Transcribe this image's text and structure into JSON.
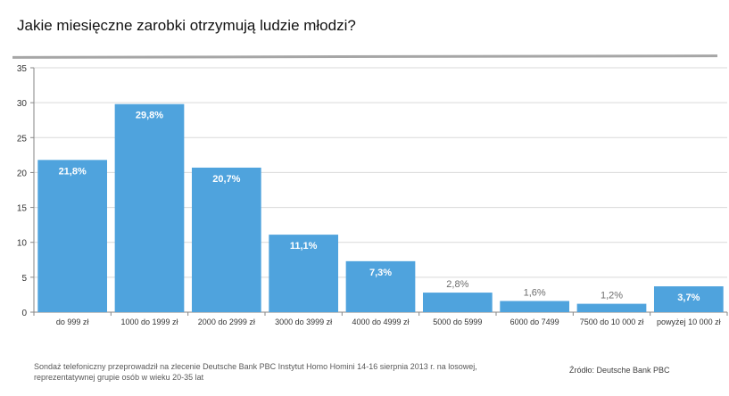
{
  "title": "Jakie miesięczne zarobki otrzymują ludzie młodzi?",
  "chart_data": {
    "type": "bar",
    "categories": [
      "do 999 zł",
      "1000 do 1999 zł",
      "2000 do 2999 zł",
      "3000 do 3999 zł",
      "4000 do 4999 zł",
      "5000 do 5999",
      "6000 do 7499",
      "7500 do 10 000 zł",
      "powyżej 10 000 zł"
    ],
    "values": [
      21.8,
      29.8,
      20.7,
      11.1,
      7.3,
      2.8,
      1.6,
      1.2,
      3.7
    ],
    "labels": [
      "21,8%",
      "29,8%",
      "20,7%",
      "11,1%",
      "7,3%",
      "2,8%",
      "1,6%",
      "1,2%",
      "3,7%"
    ],
    "ylim": [
      0,
      35
    ],
    "yticks": [
      0,
      5,
      10,
      15,
      20,
      25,
      30,
      35
    ],
    "xlabel": "",
    "ylabel": "",
    "bar_color": "#4fa3dd",
    "grid": true
  },
  "note": "Sondaż telefoniczny przeprowadził na zlecenie Deutsche Bank PBC Instytut Homo Homini 14-16 sierpnia 2013 r. na losowej, reprezentatywnej grupie osób w wieku 20-35 lat",
  "source": "Źródło: Deutsche Bank PBC"
}
